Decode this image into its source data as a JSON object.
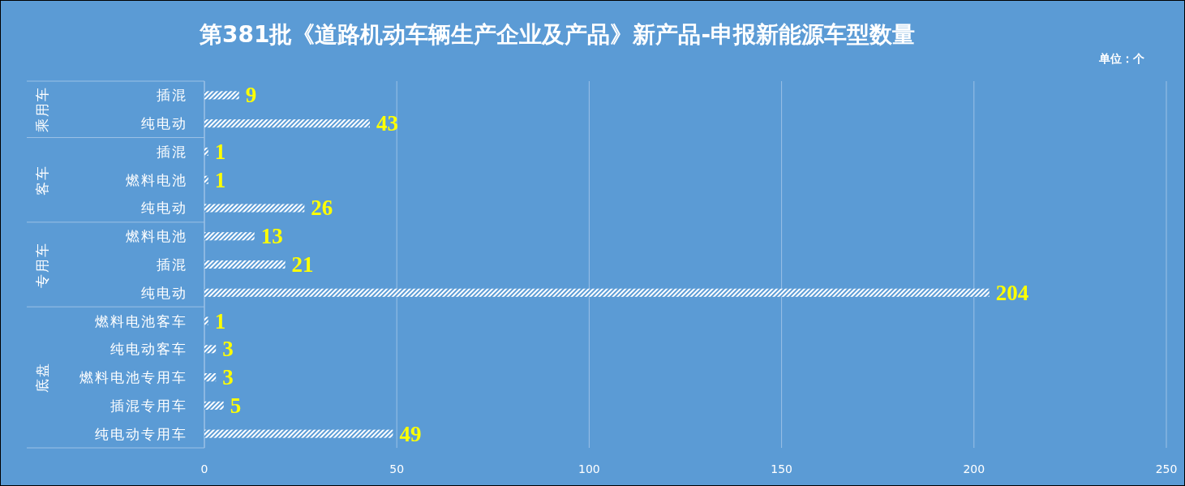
{
  "chart_data": {
    "type": "bar",
    "orientation": "horizontal",
    "title": "第381批《道路机动车辆生产企业及产品》新产品-申报新能源车型数量",
    "annotations": [
      "单位：个"
    ],
    "categories": [
      "插混",
      "纯电动",
      "插混",
      "燃料电池",
      "纯电动",
      "燃料电池",
      "插混",
      "纯电动",
      "燃料电池客车",
      "纯电动客车",
      "燃料电池专用车",
      "插混专用车",
      "纯电动专用车"
    ],
    "y2_categories": [
      "乘用车",
      null,
      null,
      "客车",
      null,
      null,
      "专用车",
      null,
      null,
      null,
      "底盘",
      null,
      null
    ],
    "values": [
      9,
      43,
      1,
      1,
      26,
      13,
      21,
      204,
      1,
      3,
      3,
      5,
      49
    ],
    "color": "#ffffff",
    "xlim": [
      0,
      250
    ],
    "xticks": [
      0,
      50,
      100,
      150,
      200,
      250
    ],
    "grid": "x",
    "data_labels": true
  }
}
